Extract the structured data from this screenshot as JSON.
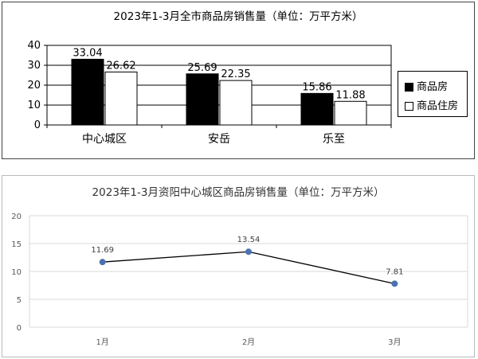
{
  "chart_data": [
    {
      "type": "bar",
      "title": "2023年1-3月全市商品房销售量（单位：万平方米）",
      "categories": [
        "中心城区",
        "安岳",
        "乐至"
      ],
      "series": [
        {
          "name": "商品房",
          "values": [
            33.04,
            25.69,
            15.86
          ],
          "color": "#000000"
        },
        {
          "name": "商品住房",
          "values": [
            26.62,
            22.35,
            11.88
          ],
          "color": "#ffffff"
        }
      ],
      "ylim": [
        0,
        40
      ],
      "yticks": [
        0,
        10,
        20,
        30,
        40
      ],
      "xlabel": "",
      "ylabel": "",
      "legend": "right",
      "grid": true
    },
    {
      "type": "line",
      "title": "2023年1-3月资阳中心城区商品房销售量（单位：万平方米）",
      "categories": [
        "1月",
        "2月",
        "3月"
      ],
      "series": [
        {
          "values": [
            11.69,
            13.54,
            7.81
          ],
          "color": "#4a72b0"
        }
      ],
      "ylim": [
        0,
        20
      ],
      "yticks": [
        0,
        5,
        10,
        15,
        20
      ],
      "xlabel": "",
      "ylabel": "",
      "grid": true
    }
  ]
}
